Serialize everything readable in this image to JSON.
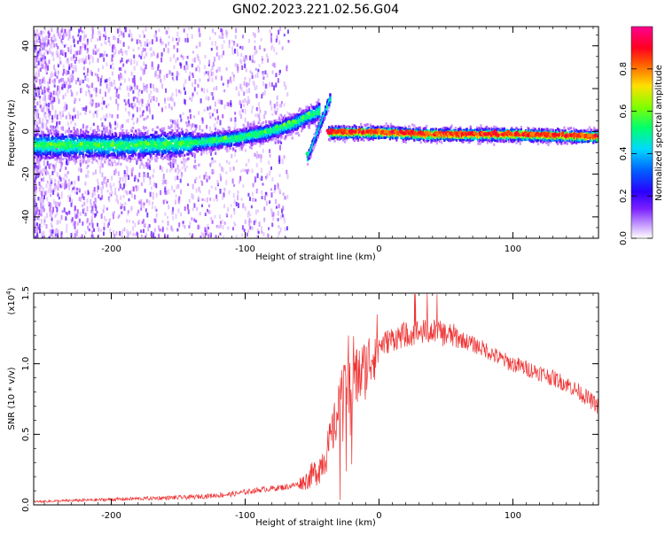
{
  "title": "GN02.2023.221.02.56.G04",
  "chart_data": [
    {
      "type": "heatmap",
      "xlabel": "Height of straight line (km)",
      "ylabel": "Frequency (Hz)",
      "xlim": [
        -258,
        164
      ],
      "ylim": [
        -50,
        49
      ],
      "xticks": [
        -200,
        -100,
        0,
        100
      ],
      "yticks": [
        -40,
        -20,
        0,
        20,
        40
      ],
      "colorbar": {
        "label": "Normalized spectral amplitude",
        "range": [
          0,
          1
        ],
        "ticks": [
          "0.0",
          "0.2",
          "0.4",
          "0.6",
          "0.8"
        ],
        "tick_values": [
          0,
          0.2,
          0.4,
          0.6,
          0.8
        ],
        "colormap": [
          "#ffffff",
          "#9b30ff",
          "#3a00ff",
          "#0050ff",
          "#00e0ff",
          "#00ff60",
          "#9aff00",
          "#ffd000",
          "#ff5000",
          "#ff0020",
          "#ff0080"
        ]
      },
      "ridges": [
        {
          "x": [
            -258,
            -200,
            -150,
            -110,
            -85,
            -65,
            -52,
            -45
          ],
          "y": [
            -6,
            -6,
            -5.5,
            -3,
            0,
            4,
            8,
            10
          ]
        },
        {
          "x": [
            -54,
            -48,
            -42,
            -37
          ],
          "y": [
            -12,
            -2,
            8,
            16
          ]
        },
        {
          "x": [
            -38,
            -20,
            0,
            40,
            100,
            164
          ],
          "y": [
            0,
            0,
            0,
            -1,
            -1,
            -2
          ]
        }
      ]
    },
    {
      "type": "line",
      "xlabel": "Height of straight line (km)",
      "ylabel": "SNR (10 * v/v)",
      "yscale_label": "(x10",
      "yscale_exp": "4",
      "xlim": [
        -258,
        164
      ],
      "ylim": [
        0,
        1.5
      ],
      "xticks": [
        -200,
        -100,
        0,
        100
      ],
      "yticks": [
        0.0,
        0.5,
        1.0,
        1.5
      ],
      "ytick_labels": [
        "0.0",
        "0.5",
        "1.0",
        "1.5"
      ],
      "color": "#ee3333",
      "series": [
        {
          "x": [
            -258,
            -220,
            -180,
            -140,
            -110,
            -90,
            -70,
            -55,
            -45,
            -38,
            -32,
            -28,
            -24,
            -20,
            -15,
            -10,
            -5,
            0,
            10,
            20,
            30,
            40,
            50,
            60,
            70,
            80,
            90,
            100,
            110,
            120,
            130,
            140,
            150,
            164
          ],
          "values": [
            0.02,
            0.03,
            0.04,
            0.05,
            0.07,
            0.1,
            0.12,
            0.15,
            0.22,
            0.35,
            0.55,
            0.7,
            0.75,
            0.8,
            0.85,
            0.9,
            1.0,
            1.1,
            1.15,
            1.18,
            1.2,
            1.2,
            1.18,
            1.16,
            1.12,
            1.08,
            1.02,
            0.98,
            0.95,
            0.92,
            0.88,
            0.84,
            0.78,
            0.68
          ]
        }
      ]
    }
  ]
}
